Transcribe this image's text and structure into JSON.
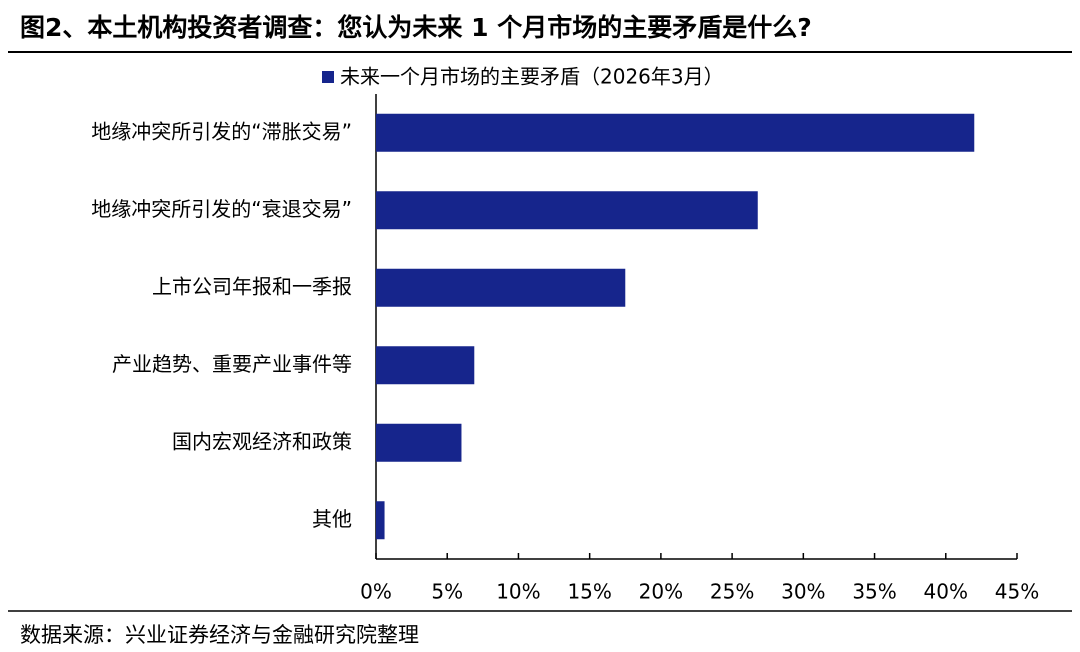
{
  "title": "图2、本土机构投资者调查：您认为未来 1 个月市场的主要矛盾是什么?",
  "source": "数据来源：兴业证券经济与金融研究院整理",
  "chart_data": {
    "type": "bar",
    "orientation": "horizontal",
    "categories": [
      "地缘冲突所引发的“滞胀交易”",
      "地缘冲突所引发的“衰退交易”",
      "上市公司年报和一季报",
      "产业趋势、重要产业事件等",
      "国内宏观经济和政策",
      "其他"
    ],
    "series": [
      {
        "name": "未来一个月市场的主要矛盾（2026年3月）",
        "color": "#16258c",
        "values": [
          42,
          26.8,
          17.5,
          6.9,
          6.0,
          0.6
        ]
      }
    ],
    "xlim": [
      0,
      45
    ],
    "xticks": [
      {
        "value": 0,
        "label": "0%"
      },
      {
        "value": 5,
        "label": "5%"
      },
      {
        "value": 10,
        "label": "10%"
      },
      {
        "value": 15,
        "label": "15%"
      },
      {
        "value": 20,
        "label": "20%"
      },
      {
        "value": 25,
        "label": "25%"
      },
      {
        "value": 30,
        "label": "30%"
      },
      {
        "value": 35,
        "label": "35%"
      },
      {
        "value": 40,
        "label": "40%"
      },
      {
        "value": 45,
        "label": "45%"
      }
    ],
    "legend": "top"
  }
}
